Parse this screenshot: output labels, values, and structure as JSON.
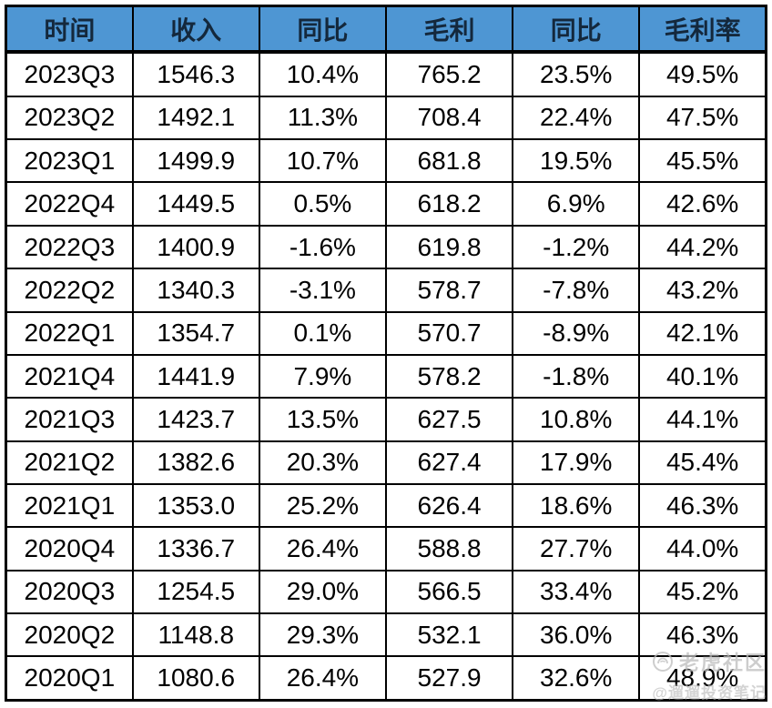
{
  "table": {
    "headers": [
      "时间",
      "收入",
      "同比",
      "毛利",
      "同比",
      "毛利率"
    ],
    "rows": [
      [
        "2023Q3",
        "1546.3",
        "10.4%",
        "765.2",
        "23.5%",
        "49.5%"
      ],
      [
        "2023Q2",
        "1492.1",
        "11.3%",
        "708.4",
        "22.4%",
        "47.5%"
      ],
      [
        "2023Q1",
        "1499.9",
        "10.7%",
        "681.8",
        "19.5%",
        "45.5%"
      ],
      [
        "2022Q4",
        "1449.5",
        "0.5%",
        "618.2",
        "6.9%",
        "42.6%"
      ],
      [
        "2022Q3",
        "1400.9",
        "-1.6%",
        "619.8",
        "-1.2%",
        "44.2%"
      ],
      [
        "2022Q2",
        "1340.3",
        "-3.1%",
        "578.7",
        "-7.8%",
        "43.2%"
      ],
      [
        "2022Q1",
        "1354.7",
        "0.1%",
        "570.7",
        "-8.9%",
        "42.1%"
      ],
      [
        "2021Q4",
        "1441.9",
        "7.9%",
        "578.2",
        "-1.8%",
        "40.1%"
      ],
      [
        "2021Q3",
        "1423.7",
        "13.5%",
        "627.5",
        "10.8%",
        "44.1%"
      ],
      [
        "2021Q2",
        "1382.6",
        "20.3%",
        "627.4",
        "17.9%",
        "45.4%"
      ],
      [
        "2021Q1",
        "1353.0",
        "25.2%",
        "626.4",
        "18.6%",
        "46.3%"
      ],
      [
        "2020Q4",
        "1336.7",
        "26.4%",
        "588.8",
        "27.7%",
        "44.0%"
      ],
      [
        "2020Q3",
        "1254.5",
        "29.0%",
        "566.5",
        "33.4%",
        "45.2%"
      ],
      [
        "2020Q2",
        "1148.8",
        "29.3%",
        "532.1",
        "36.0%",
        "46.3%"
      ],
      [
        "2020Q1",
        "1080.6",
        "26.4%",
        "527.9",
        "32.6%",
        "48.9%"
      ]
    ]
  },
  "watermark": {
    "brand": "老虎社区",
    "handle": "@遛遛投资笔记",
    "logo_icon": "tiger-circle-logo"
  },
  "colors": {
    "header_bg": "#4E96D3",
    "header_text": "#14283c",
    "border": "#000000",
    "cell_text": "#000000",
    "watermark": "#bdbdbd"
  },
  "chart_data": {
    "type": "table",
    "title": "",
    "columns": [
      "时间",
      "收入",
      "同比",
      "毛利",
      "同比",
      "毛利率"
    ],
    "rows": [
      [
        "2023Q3",
        1546.3,
        "10.4%",
        765.2,
        "23.5%",
        "49.5%"
      ],
      [
        "2023Q2",
        1492.1,
        "11.3%",
        708.4,
        "22.4%",
        "47.5%"
      ],
      [
        "2023Q1",
        1499.9,
        "10.7%",
        681.8,
        "19.5%",
        "45.5%"
      ],
      [
        "2022Q4",
        1449.5,
        "0.5%",
        618.2,
        "6.9%",
        "42.6%"
      ],
      [
        "2022Q3",
        1400.9,
        "-1.6%",
        619.8,
        "-1.2%",
        "44.2%"
      ],
      [
        "2022Q2",
        1340.3,
        "-3.1%",
        578.7,
        "-7.8%",
        "43.2%"
      ],
      [
        "2022Q1",
        1354.7,
        "0.1%",
        570.7,
        "-8.9%",
        "42.1%"
      ],
      [
        "2021Q4",
        1441.9,
        "7.9%",
        578.2,
        "-1.8%",
        "40.1%"
      ],
      [
        "2021Q3",
        1423.7,
        "13.5%",
        627.5,
        "10.8%",
        "44.1%"
      ],
      [
        "2021Q2",
        1382.6,
        "20.3%",
        627.4,
        "17.9%",
        "45.4%"
      ],
      [
        "2021Q1",
        1353.0,
        "25.2%",
        626.4,
        "18.6%",
        "46.3%"
      ],
      [
        "2020Q4",
        1336.7,
        "26.4%",
        588.8,
        "27.7%",
        "44.0%"
      ],
      [
        "2020Q3",
        1254.5,
        "29.0%",
        566.5,
        "33.4%",
        "45.2%"
      ],
      [
        "2020Q2",
        1148.8,
        "29.3%",
        532.1,
        "36.0%",
        "46.3%"
      ],
      [
        "2020Q1",
        1080.6,
        "26.4%",
        527.9,
        "32.6%",
        "48.9%"
      ]
    ]
  }
}
